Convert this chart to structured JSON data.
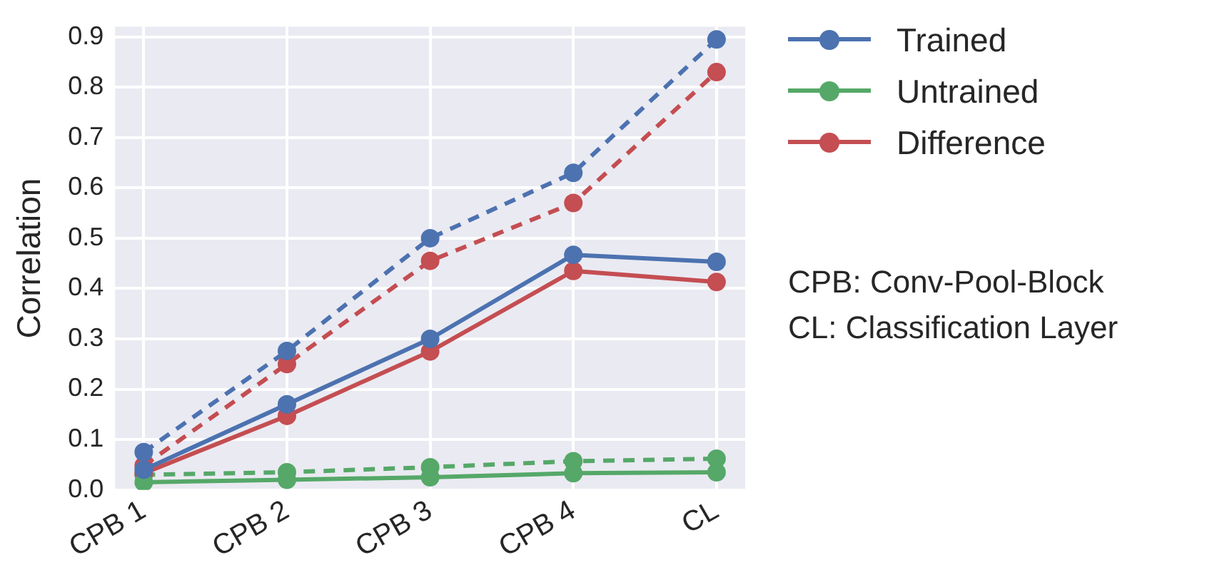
{
  "chart_data": {
    "type": "line",
    "ylabel": "Correlation",
    "categories": [
      "CPB 1",
      "CPB 2",
      "CPB 3",
      "CPB 4",
      "CL"
    ],
    "ylim": [
      0,
      0.92
    ],
    "yticks": [
      {
        "value": 0,
        "label": "0.0"
      },
      0.1,
      0.2,
      0.3,
      0.4,
      0.5,
      0.6,
      0.7,
      0.8,
      0.9
    ],
    "grid": true,
    "legend": "top right",
    "marker": "circle",
    "line_style": "solid",
    "series": [
      {
        "name": "Trained",
        "color": "#4c72b0",
        "values": [
          0.04,
          0.17,
          0.3,
          0.467,
          0.453
        ]
      },
      {
        "name": "Untrained",
        "color": "#55a868",
        "values": [
          0.015,
          0.02,
          0.025,
          0.033,
          0.035
        ]
      },
      {
        "name": "Difference",
        "color": "#c44e52",
        "values": [
          0.033,
          0.147,
          0.275,
          0.435,
          0.413
        ]
      },
      {
        "color": "#4c72b0",
        "line_style": "dashed",
        "values": [
          0.075,
          0.276,
          0.5,
          0.63,
          0.895
        ]
      },
      {
        "color": "#55a868",
        "line_style": "dashed",
        "values": [
          0.03,
          0.035,
          0.045,
          0.057,
          0.062
        ]
      },
      {
        "color": "#c44e52",
        "line_style": "dashed",
        "values": [
          0.048,
          0.25,
          0.455,
          0.57,
          0.83
        ]
      }
    ],
    "annotations": [
      "CPB: Conv-Pool-Block",
      "CL: Classification Layer"
    ]
  }
}
